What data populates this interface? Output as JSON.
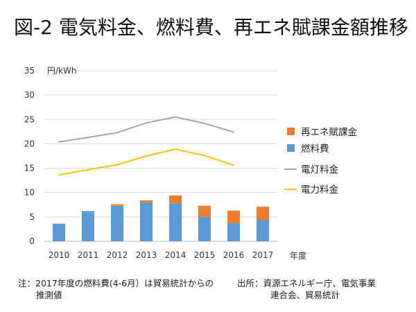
{
  "title": "図-2 電気料金、燃料費、再エネ賦課金額推移",
  "chart_data": {
    "type": "bar+line",
    "title": "図-2 電気料金、燃料費、再エネ賦課金額推移",
    "ylabel": "円/kWh",
    "xlabel": "年度",
    "ylim": [
      0,
      35
    ],
    "yticks": [
      0,
      5,
      10,
      15,
      20,
      25,
      30,
      35
    ],
    "grid": true,
    "categories": [
      "2010",
      "2011",
      "2012",
      "2013",
      "2014",
      "2015",
      "2016",
      "2017"
    ],
    "stacked_bars": [
      {
        "name": "燃料費",
        "color": "#5b9bd5",
        "values": [
          3.6,
          6.2,
          7.3,
          8.0,
          7.8,
          5.0,
          3.7,
          4.4
        ]
      },
      {
        "name": "再エネ賦課金",
        "color": "#ed7d31",
        "values": [
          0.0,
          0.0,
          0.3,
          0.4,
          1.6,
          2.3,
          2.6,
          2.7
        ]
      }
    ],
    "lines": [
      {
        "name": "電灯料金",
        "color": "#a5a5a5",
        "values": [
          20.4,
          21.3,
          22.3,
          24.3,
          25.5,
          24.2,
          22.4,
          null
        ]
      },
      {
        "name": "電力料金",
        "color": "#ffc000",
        "values": [
          13.6,
          14.7,
          15.7,
          17.5,
          18.9,
          17.6,
          15.6,
          null
        ]
      }
    ],
    "legend_position": "right",
    "legend": [
      {
        "name": "再エネ賦課金",
        "kind": "bar",
        "color": "#ed7d31"
      },
      {
        "name": "燃料費",
        "kind": "bar",
        "color": "#5b9bd5"
      },
      {
        "name": "電灯料金",
        "kind": "line",
        "color": "#a5a5a5"
      },
      {
        "name": "電力料金",
        "kind": "line",
        "color": "#ffc000"
      }
    ]
  },
  "note": {
    "line1": "注：2017年度の燃料費(4-6月）は貿易統計からの",
    "line2": "推測値"
  },
  "source": {
    "line1": "出所：資源エネルギー庁、電気事業",
    "line2": "連合会、貿易統計"
  }
}
